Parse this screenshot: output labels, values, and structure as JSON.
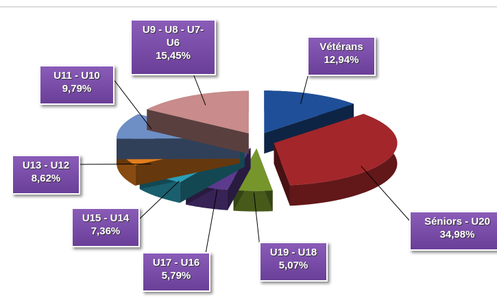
{
  "chart_data": {
    "type": "pie",
    "categories": [
      "Vétérans",
      "Séniors - U20",
      "U19 - U18",
      "U17 - U16",
      "U15 - U14",
      "U13 - U12",
      "U11 - U10",
      "U9 - U8 - U7- U6"
    ],
    "values": [
      12.94,
      34.98,
      5.07,
      5.79,
      7.36,
      8.62,
      9.79,
      15.45
    ],
    "value_labels": [
      "12,94%",
      "34,98%",
      "5,07%",
      "5,79%",
      "7,36%",
      "8,62%",
      "9,79%",
      "15,45%"
    ],
    "colors": [
      "#1f4f98",
      "#a3262a",
      "#76962c",
      "#5c3a8e",
      "#2a9fb8",
      "#e27d1c",
      "#6d8fc6",
      "#c98b8b"
    ]
  }
}
